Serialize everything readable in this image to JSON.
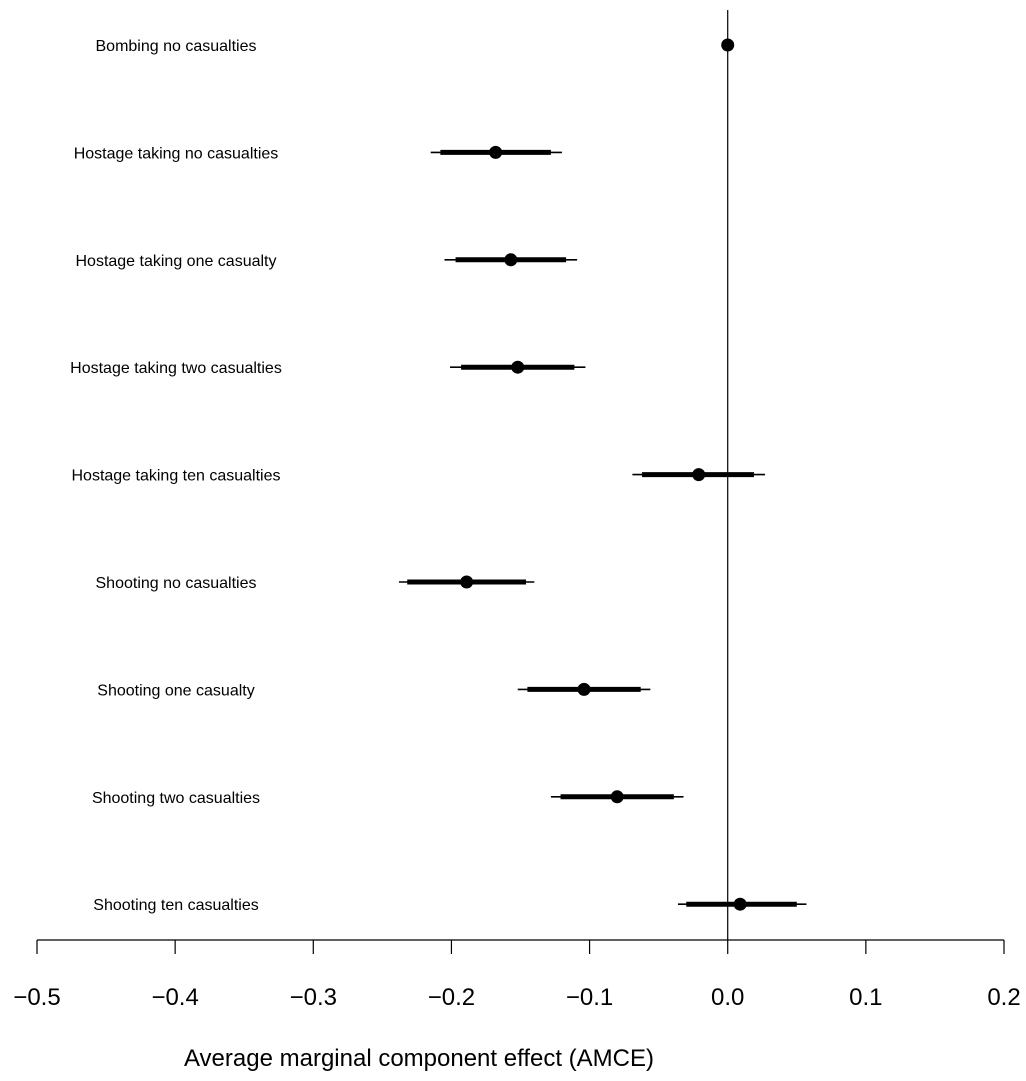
{
  "chart_data": {
    "type": "coefficient-plot",
    "xlabel": "Average marginal component effect (AMCE)",
    "xlim": [
      -0.5,
      0.2
    ],
    "xticks": [
      -0.5,
      -0.4,
      -0.3,
      -0.2,
      -0.1,
      0.0,
      0.1,
      0.2
    ],
    "xtick_labels": [
      "−0.5",
      "−0.4",
      "−0.3",
      "−0.2",
      "−0.1",
      "0.0",
      "0.1",
      "0.2"
    ],
    "reference_line": 0.0,
    "grid": false,
    "categories": [
      "Bombing no casualties",
      "Hostage taking no casualties",
      "Hostage taking one casualty",
      "Hostage taking two casualties",
      "Hostage taking ten casualties",
      "Shooting no casualties",
      "Shooting one casualty",
      "Shooting two casualties",
      "Shooting ten casualties"
    ],
    "estimates": [
      0.0,
      -0.168,
      -0.157,
      -0.152,
      -0.021,
      -0.189,
      -0.104,
      -0.08,
      0.009
    ],
    "ci90_low": [
      0.0,
      -0.208,
      -0.197,
      -0.193,
      -0.062,
      -0.232,
      -0.145,
      -0.121,
      -0.03
    ],
    "ci90_high": [
      0.0,
      -0.128,
      -0.117,
      -0.111,
      0.019,
      -0.146,
      -0.063,
      -0.039,
      0.05
    ],
    "ci95_low": [
      0.0,
      -0.215,
      -0.205,
      -0.201,
      -0.069,
      -0.238,
      -0.152,
      -0.128,
      -0.036
    ],
    "ci95_high": [
      0.0,
      -0.12,
      -0.109,
      -0.103,
      0.027,
      -0.14,
      -0.056,
      -0.032,
      0.057
    ],
    "colors": {
      "marks": "#000000",
      "background": "#ffffff"
    }
  }
}
